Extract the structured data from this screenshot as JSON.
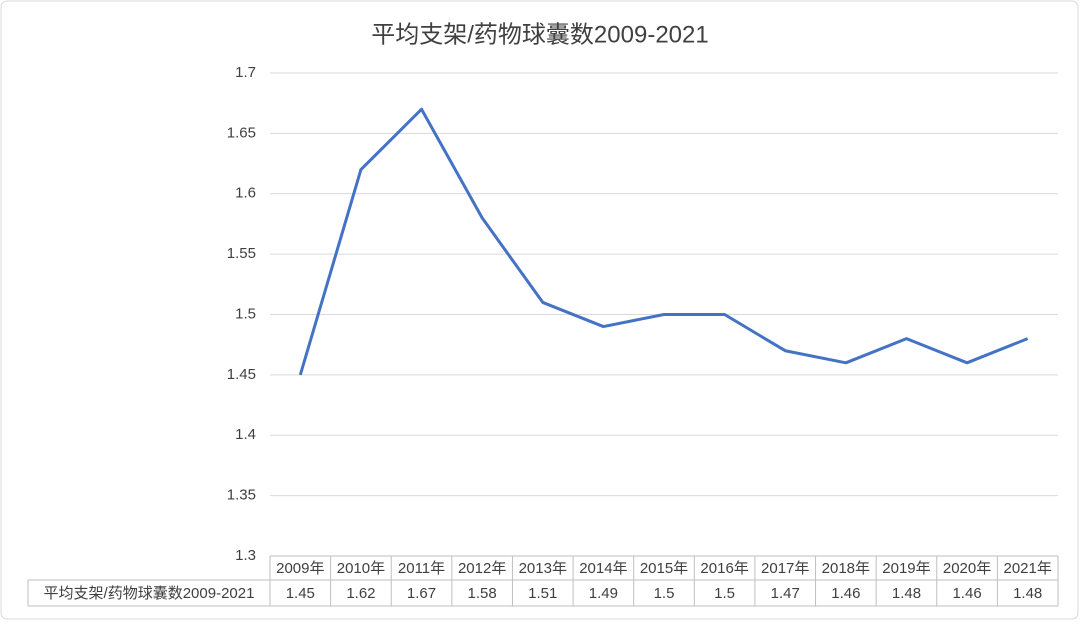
{
  "chart_data": {
    "type": "line",
    "title": "平均支架/药物球囊数2009-2021",
    "categories": [
      "2009年",
      "2010年",
      "2011年",
      "2012年",
      "2013年",
      "2014年",
      "2015年",
      "2016年",
      "2017年",
      "2018年",
      "2019年",
      "2020年",
      "2021年"
    ],
    "series": [
      {
        "name": "平均支架/药物球囊数2009-2021",
        "color": "#4472c4",
        "values": [
          1.45,
          1.62,
          1.67,
          1.58,
          1.51,
          1.49,
          1.5,
          1.5,
          1.47,
          1.46,
          1.48,
          1.46,
          1.48
        ]
      }
    ],
    "ylim": [
      1.3,
      1.7
    ],
    "yticks": [
      1.3,
      1.35,
      1.4,
      1.45,
      1.5,
      1.55,
      1.6,
      1.65,
      1.7
    ],
    "grid": true,
    "data_table": true
  }
}
